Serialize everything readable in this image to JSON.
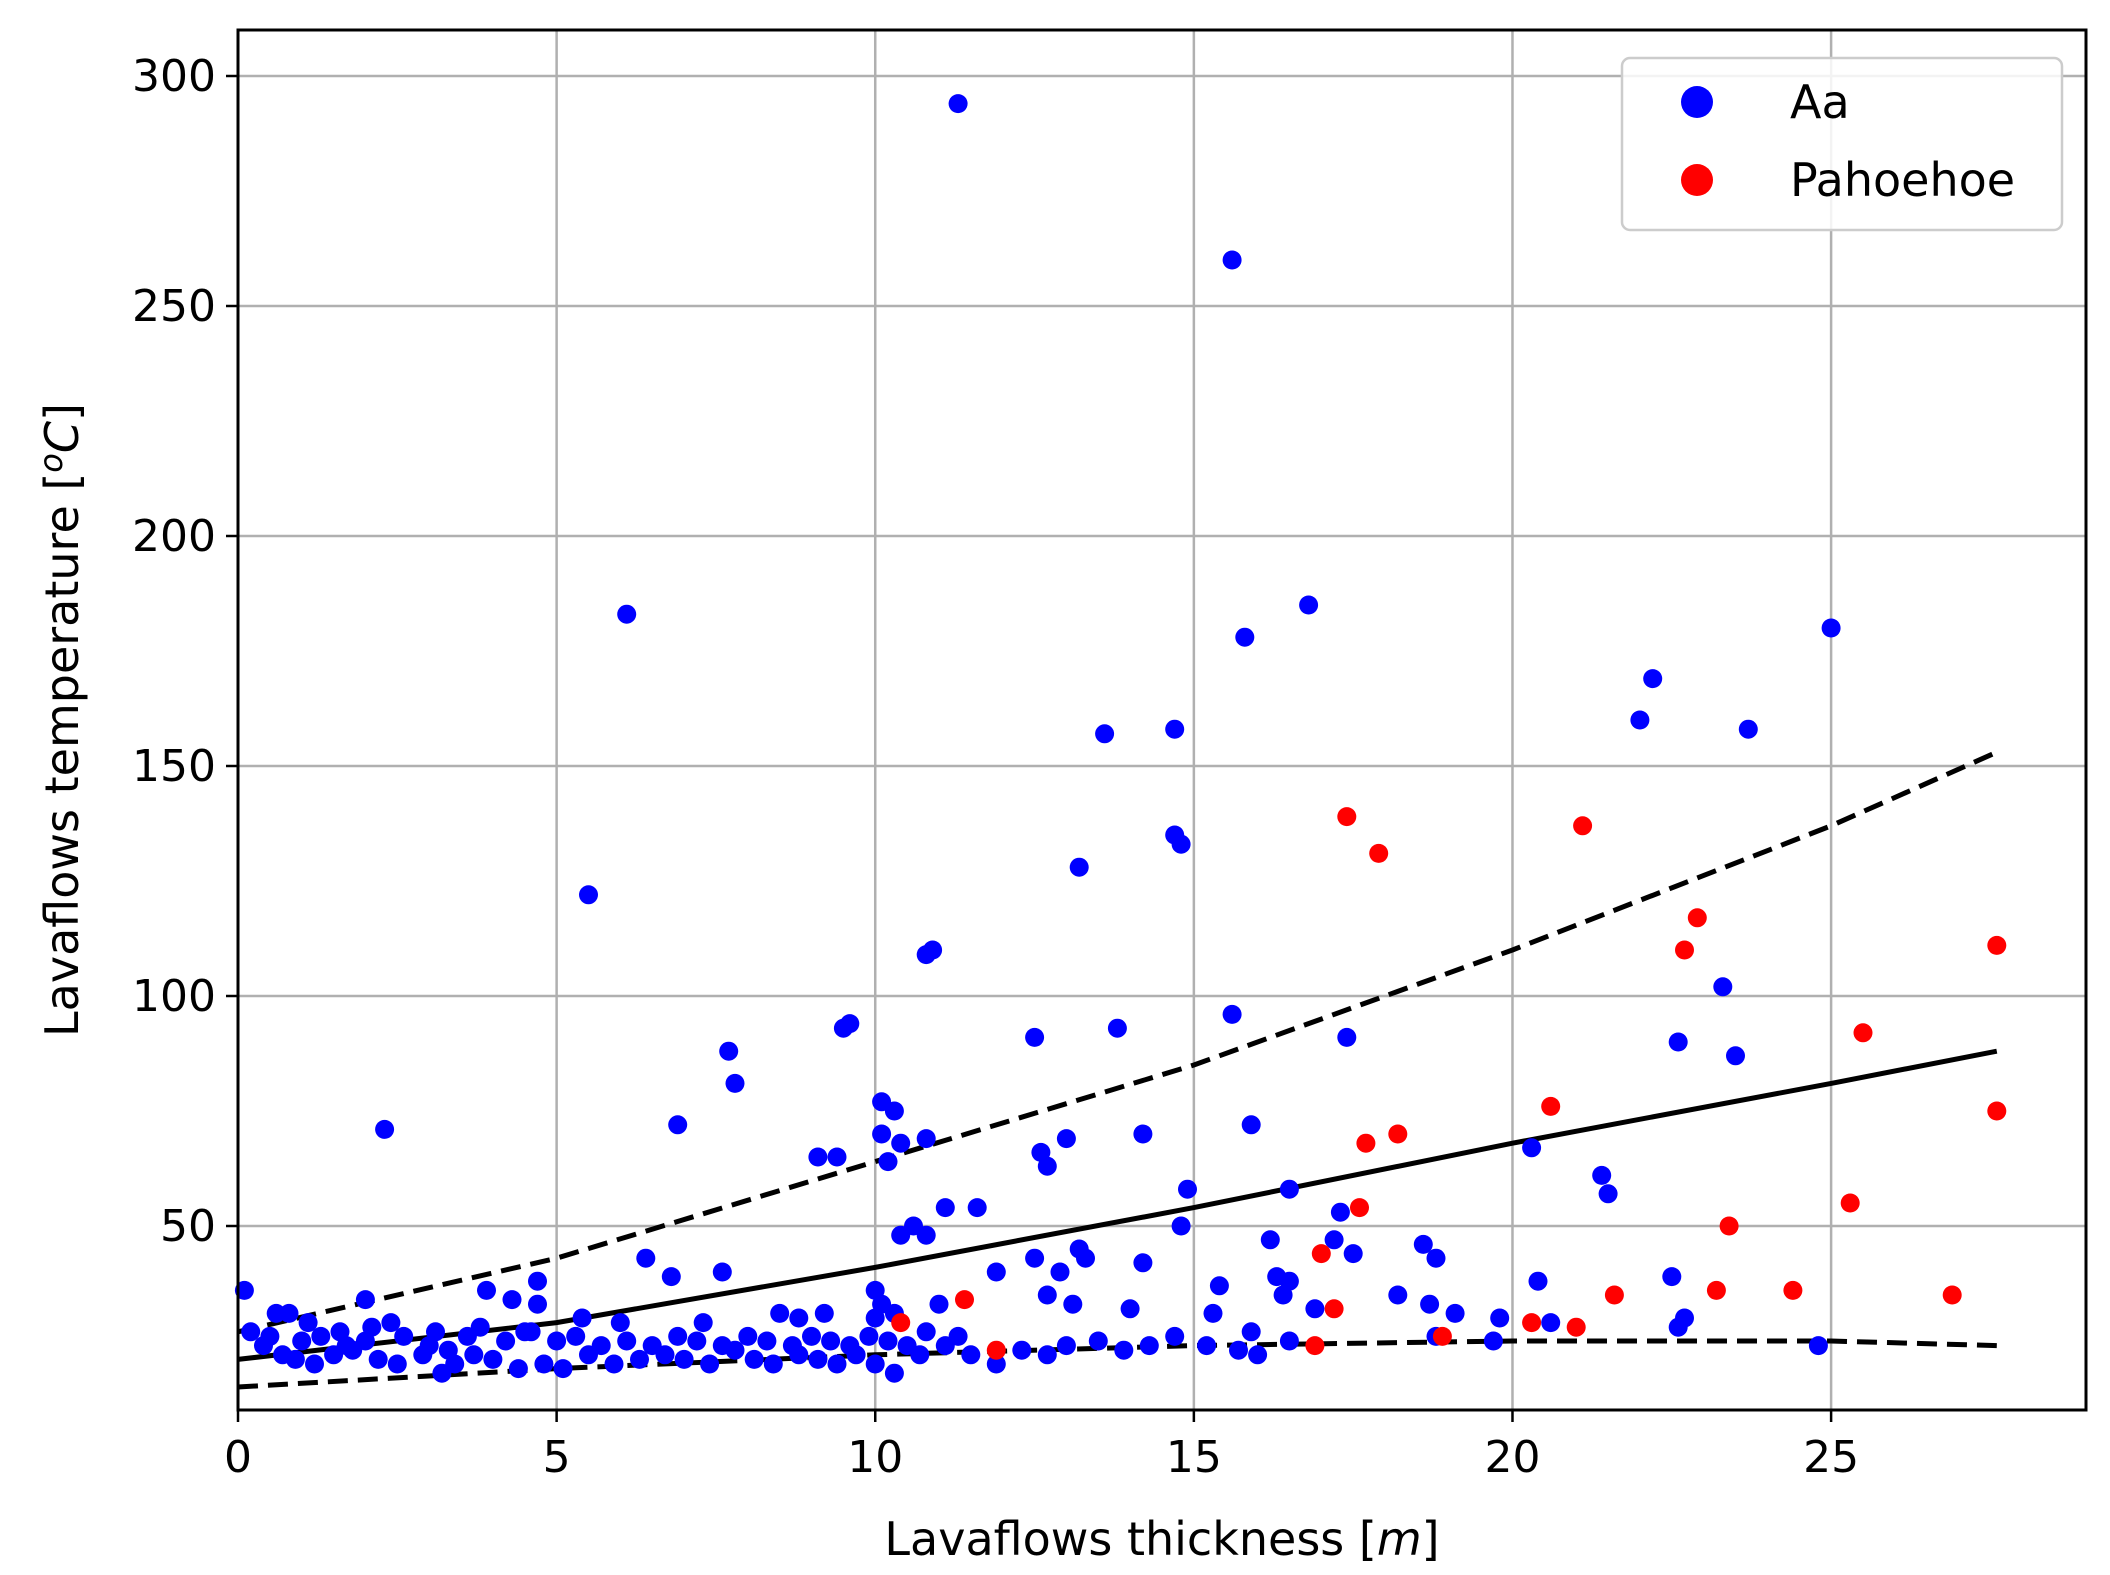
{
  "chart_data": {
    "type": "scatter",
    "xlabel": "Lavaflows thickness [m]",
    "xlabel_parts": {
      "prefix": "Lavaflows thickness [",
      "unit": "m",
      "suffix": "]"
    },
    "ylabel": "Lavaflows temperature [°C]",
    "ylabel_parts": {
      "prefix": "Lavaflows temperature [",
      "sup": "o",
      "unit": "C",
      "suffix": "]"
    },
    "xlim": [
      0,
      29
    ],
    "ylim": [
      10,
      310
    ],
    "xticks": [
      0,
      5,
      10,
      15,
      20,
      25
    ],
    "yticks": [
      50,
      100,
      150,
      200,
      250,
      300
    ],
    "xtick_labels": [
      "0",
      "5",
      "10",
      "15",
      "20",
      "25"
    ],
    "ytick_labels": [
      "50",
      "100",
      "150",
      "200",
      "250",
      "300"
    ],
    "grid": true,
    "legend": {
      "position": "top-right",
      "entries": [
        "Aa",
        "Pahoehoe"
      ]
    },
    "series": [
      {
        "name": "Aa",
        "color": "#0000ff",
        "points": [
          [
            11.3,
            294
          ],
          [
            15.6,
            260
          ],
          [
            6.1,
            183
          ],
          [
            16.8,
            185
          ],
          [
            15.8,
            178
          ],
          [
            25.0,
            180
          ],
          [
            22.2,
            169
          ],
          [
            22.0,
            160
          ],
          [
            23.7,
            158
          ],
          [
            14.7,
            158
          ],
          [
            13.6,
            157
          ],
          [
            14.7,
            135
          ],
          [
            14.8,
            133
          ],
          [
            13.2,
            128
          ],
          [
            5.5,
            122
          ],
          [
            10.9,
            110
          ],
          [
            10.8,
            109
          ],
          [
            23.3,
            102
          ],
          [
            15.6,
            96
          ],
          [
            9.6,
            94
          ],
          [
            9.5,
            93
          ],
          [
            13.8,
            93
          ],
          [
            12.5,
            91
          ],
          [
            22.6,
            90
          ],
          [
            17.4,
            91
          ],
          [
            7.7,
            88
          ],
          [
            23.5,
            87
          ],
          [
            7.8,
            81
          ],
          [
            10.1,
            77
          ],
          [
            10.3,
            75
          ],
          [
            2.3,
            71
          ],
          [
            6.9,
            72
          ],
          [
            10.1,
            70
          ],
          [
            15.9,
            72
          ],
          [
            14.2,
            70
          ],
          [
            10.8,
            69
          ],
          [
            13.0,
            69
          ],
          [
            10.4,
            68
          ],
          [
            12.6,
            66
          ],
          [
            12.7,
            63
          ],
          [
            20.3,
            67
          ],
          [
            9.1,
            65
          ],
          [
            9.4,
            65
          ],
          [
            10.2,
            64
          ],
          [
            21.4,
            61
          ],
          [
            14.9,
            58
          ],
          [
            16.5,
            58
          ],
          [
            21.5,
            57
          ],
          [
            11.1,
            54
          ],
          [
            11.6,
            54
          ],
          [
            17.3,
            53
          ],
          [
            10.6,
            50
          ],
          [
            14.8,
            50
          ],
          [
            10.8,
            48
          ],
          [
            10.4,
            48
          ],
          [
            16.2,
            47
          ],
          [
            17.2,
            47
          ],
          [
            18.6,
            46
          ],
          [
            13.2,
            45
          ],
          [
            13.3,
            43
          ],
          [
            12.5,
            43
          ],
          [
            14.2,
            42
          ],
          [
            18.8,
            43
          ],
          [
            17.5,
            44
          ],
          [
            6.4,
            43
          ],
          [
            7.6,
            40
          ],
          [
            6.8,
            39
          ],
          [
            11.9,
            40
          ],
          [
            12.9,
            40
          ],
          [
            16.3,
            39
          ],
          [
            16.5,
            38
          ],
          [
            22.5,
            39
          ],
          [
            20.4,
            38
          ],
          [
            4.7,
            38
          ],
          [
            15.4,
            37
          ],
          [
            3.9,
            36
          ],
          [
            10.0,
            36
          ],
          [
            4.3,
            34
          ],
          [
            4.7,
            33
          ],
          [
            10.1,
            33
          ],
          [
            18.2,
            35
          ],
          [
            16.4,
            35
          ],
          [
            0.1,
            36
          ],
          [
            2.0,
            34
          ],
          [
            0.8,
            31
          ],
          [
            0.6,
            31
          ],
          [
            1.1,
            29
          ],
          [
            1.6,
            27
          ],
          [
            2.4,
            29
          ],
          [
            2.1,
            28
          ],
          [
            3.1,
            27
          ],
          [
            3.8,
            28
          ],
          [
            4.5,
            27
          ],
          [
            5.4,
            30
          ],
          [
            6.0,
            29
          ],
          [
            7.3,
            29
          ],
          [
            8.5,
            31
          ],
          [
            8.8,
            30
          ],
          [
            9.2,
            31
          ],
          [
            10.0,
            30
          ],
          [
            10.3,
            31
          ],
          [
            11.0,
            33
          ],
          [
            12.7,
            35
          ],
          [
            13.1,
            33
          ],
          [
            14.0,
            32
          ],
          [
            15.3,
            31
          ],
          [
            15.9,
            27
          ],
          [
            16.9,
            32
          ],
          [
            18.7,
            33
          ],
          [
            19.1,
            31
          ],
          [
            19.8,
            30
          ],
          [
            20.6,
            29
          ],
          [
            22.6,
            28
          ],
          [
            22.7,
            30
          ],
          [
            0.4,
            24
          ],
          [
            0.7,
            22
          ],
          [
            0.9,
            21
          ],
          [
            1.2,
            20
          ],
          [
            1.5,
            22
          ],
          [
            1.8,
            23
          ],
          [
            2.2,
            21
          ],
          [
            2.5,
            20
          ],
          [
            2.9,
            22
          ],
          [
            3.2,
            18
          ],
          [
            3.4,
            20
          ],
          [
            3.7,
            22
          ],
          [
            4.0,
            21
          ],
          [
            4.4,
            19
          ],
          [
            4.8,
            20
          ],
          [
            5.1,
            19
          ],
          [
            5.5,
            22
          ],
          [
            5.9,
            20
          ],
          [
            6.3,
            21
          ],
          [
            6.7,
            22
          ],
          [
            7.0,
            21
          ],
          [
            7.4,
            20
          ],
          [
            7.8,
            23
          ],
          [
            8.1,
            21
          ],
          [
            8.4,
            20
          ],
          [
            8.8,
            22
          ],
          [
            9.1,
            21
          ],
          [
            9.4,
            20
          ],
          [
            9.7,
            22
          ],
          [
            10.0,
            20
          ],
          [
            10.3,
            18
          ],
          [
            10.7,
            22
          ],
          [
            11.1,
            24
          ],
          [
            11.5,
            22
          ],
          [
            11.9,
            20
          ],
          [
            12.3,
            23
          ],
          [
            12.7,
            22
          ],
          [
            13.0,
            24
          ],
          [
            13.5,
            25
          ],
          [
            13.9,
            23
          ],
          [
            14.3,
            24
          ],
          [
            14.7,
            26
          ],
          [
            15.2,
            24
          ],
          [
            15.7,
            23
          ],
          [
            16.0,
            22
          ],
          [
            16.5,
            25
          ],
          [
            18.8,
            26
          ],
          [
            19.7,
            25
          ],
          [
            24.8,
            24
          ],
          [
            0.2,
            27
          ],
          [
            0.5,
            26
          ],
          [
            1.0,
            25
          ],
          [
            1.3,
            26
          ],
          [
            1.7,
            24
          ],
          [
            2.0,
            25
          ],
          [
            2.6,
            26
          ],
          [
            3.0,
            24
          ],
          [
            3.3,
            23
          ],
          [
            3.6,
            26
          ],
          [
            4.2,
            25
          ],
          [
            4.6,
            27
          ],
          [
            5.0,
            25
          ],
          [
            5.3,
            26
          ],
          [
            5.7,
            24
          ],
          [
            6.1,
            25
          ],
          [
            6.5,
            24
          ],
          [
            6.9,
            26
          ],
          [
            7.2,
            25
          ],
          [
            7.6,
            24
          ],
          [
            8.0,
            26
          ],
          [
            8.3,
            25
          ],
          [
            8.7,
            24
          ],
          [
            9.0,
            26
          ],
          [
            9.3,
            25
          ],
          [
            9.6,
            24
          ],
          [
            9.9,
            26
          ],
          [
            10.2,
            25
          ],
          [
            10.5,
            24
          ],
          [
            10.8,
            27
          ],
          [
            11.3,
            26
          ]
        ]
      },
      {
        "name": "Pahoehoe",
        "color": "#ff0000",
        "points": [
          [
            17.4,
            139
          ],
          [
            21.1,
            137
          ],
          [
            17.9,
            131
          ],
          [
            22.9,
            117
          ],
          [
            22.7,
            110
          ],
          [
            27.6,
            111
          ],
          [
            25.5,
            92
          ],
          [
            20.6,
            76
          ],
          [
            27.6,
            75
          ],
          [
            18.2,
            70
          ],
          [
            17.7,
            68
          ],
          [
            17.6,
            54
          ],
          [
            25.3,
            55
          ],
          [
            23.4,
            50
          ],
          [
            17.0,
            44
          ],
          [
            10.4,
            29
          ],
          [
            11.4,
            34
          ],
          [
            11.9,
            23
          ],
          [
            17.2,
            32
          ],
          [
            16.9,
            24
          ],
          [
            18.9,
            26
          ],
          [
            20.3,
            29
          ],
          [
            21.0,
            28
          ],
          [
            21.6,
            35
          ],
          [
            23.2,
            36
          ],
          [
            24.4,
            36
          ],
          [
            26.9,
            35
          ]
        ]
      }
    ],
    "fit_lines": [
      {
        "name": "fit",
        "style": "solid",
        "x": [
          0,
          5,
          10,
          15,
          20,
          25,
          27.6
        ],
        "y": [
          21,
          29,
          41,
          54,
          68,
          81,
          88
        ]
      },
      {
        "name": "upper bound",
        "style": "dashed",
        "x": [
          0,
          5,
          10,
          15,
          20,
          25,
          27.6
        ],
        "y": [
          27,
          43,
          64,
          85,
          110,
          137,
          153
        ]
      },
      {
        "name": "lower bound",
        "style": "dashed",
        "x": [
          0,
          5,
          10,
          15,
          20,
          25,
          27.6
        ],
        "y": [
          15,
          19,
          22,
          24,
          25,
          25,
          24
        ]
      }
    ]
  },
  "colors": {
    "grid": "#b0b0b0",
    "axes": "#000000",
    "legend_border": "#cccccc"
  }
}
